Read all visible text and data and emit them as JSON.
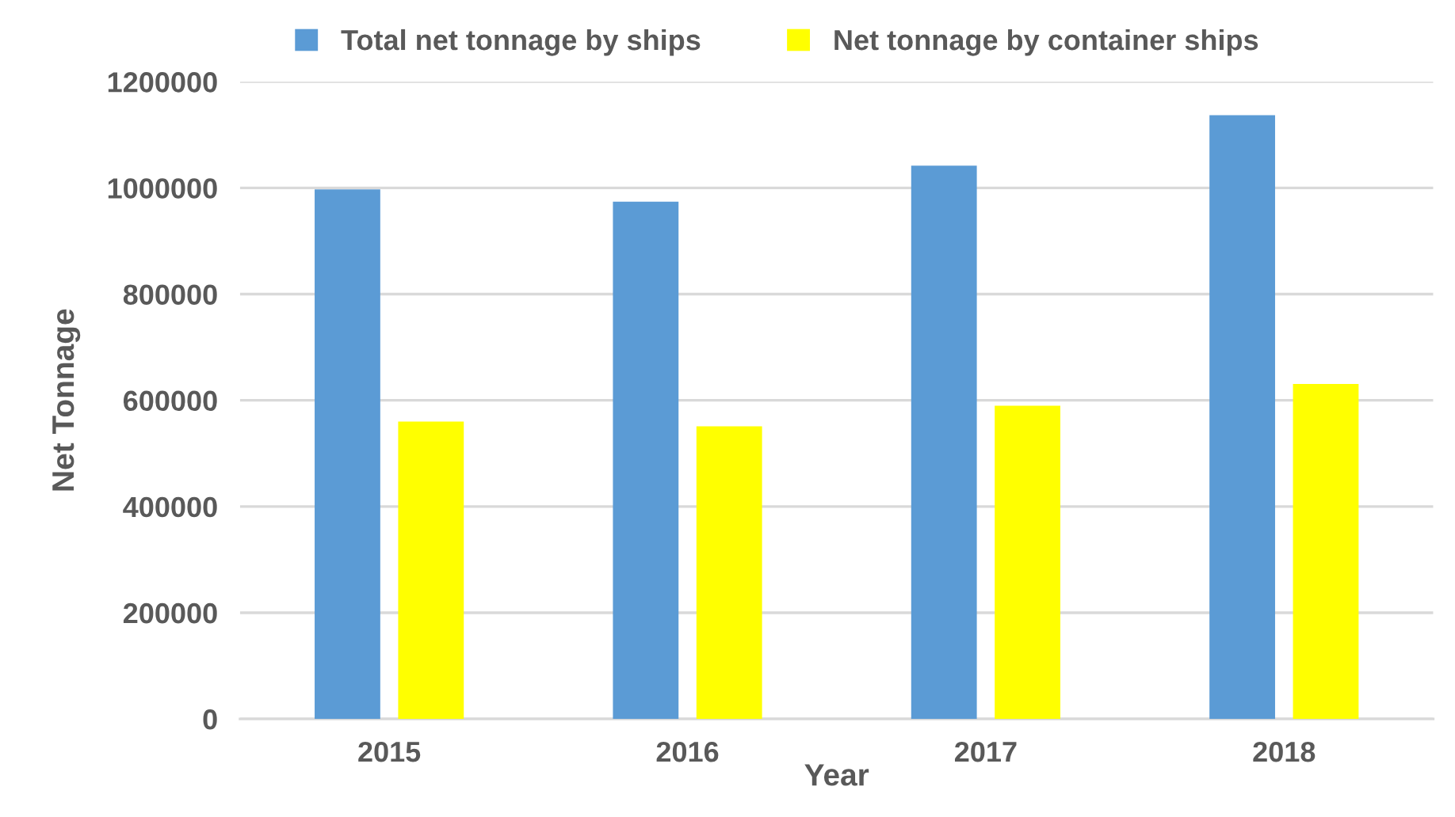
{
  "chart_data": {
    "type": "bar",
    "xlabel": "Year",
    "ylabel": "Net Tonnage",
    "categories": [
      "2015",
      "2016",
      "2017",
      "2018"
    ],
    "series": [
      {
        "name": "Total net tonnage by ships",
        "color": "#5b9bd5",
        "values": [
          997000,
          974000,
          1042000,
          1137000
        ]
      },
      {
        "name": "Net tonnage by container ships",
        "color": "#ffff00",
        "values": [
          560000,
          551000,
          590000,
          631000
        ]
      }
    ],
    "ylim": [
      0,
      1200000
    ],
    "yticks": [
      0,
      200000,
      400000,
      600000,
      800000,
      1000000,
      1200000
    ],
    "grid": "y",
    "legend": "top"
  }
}
